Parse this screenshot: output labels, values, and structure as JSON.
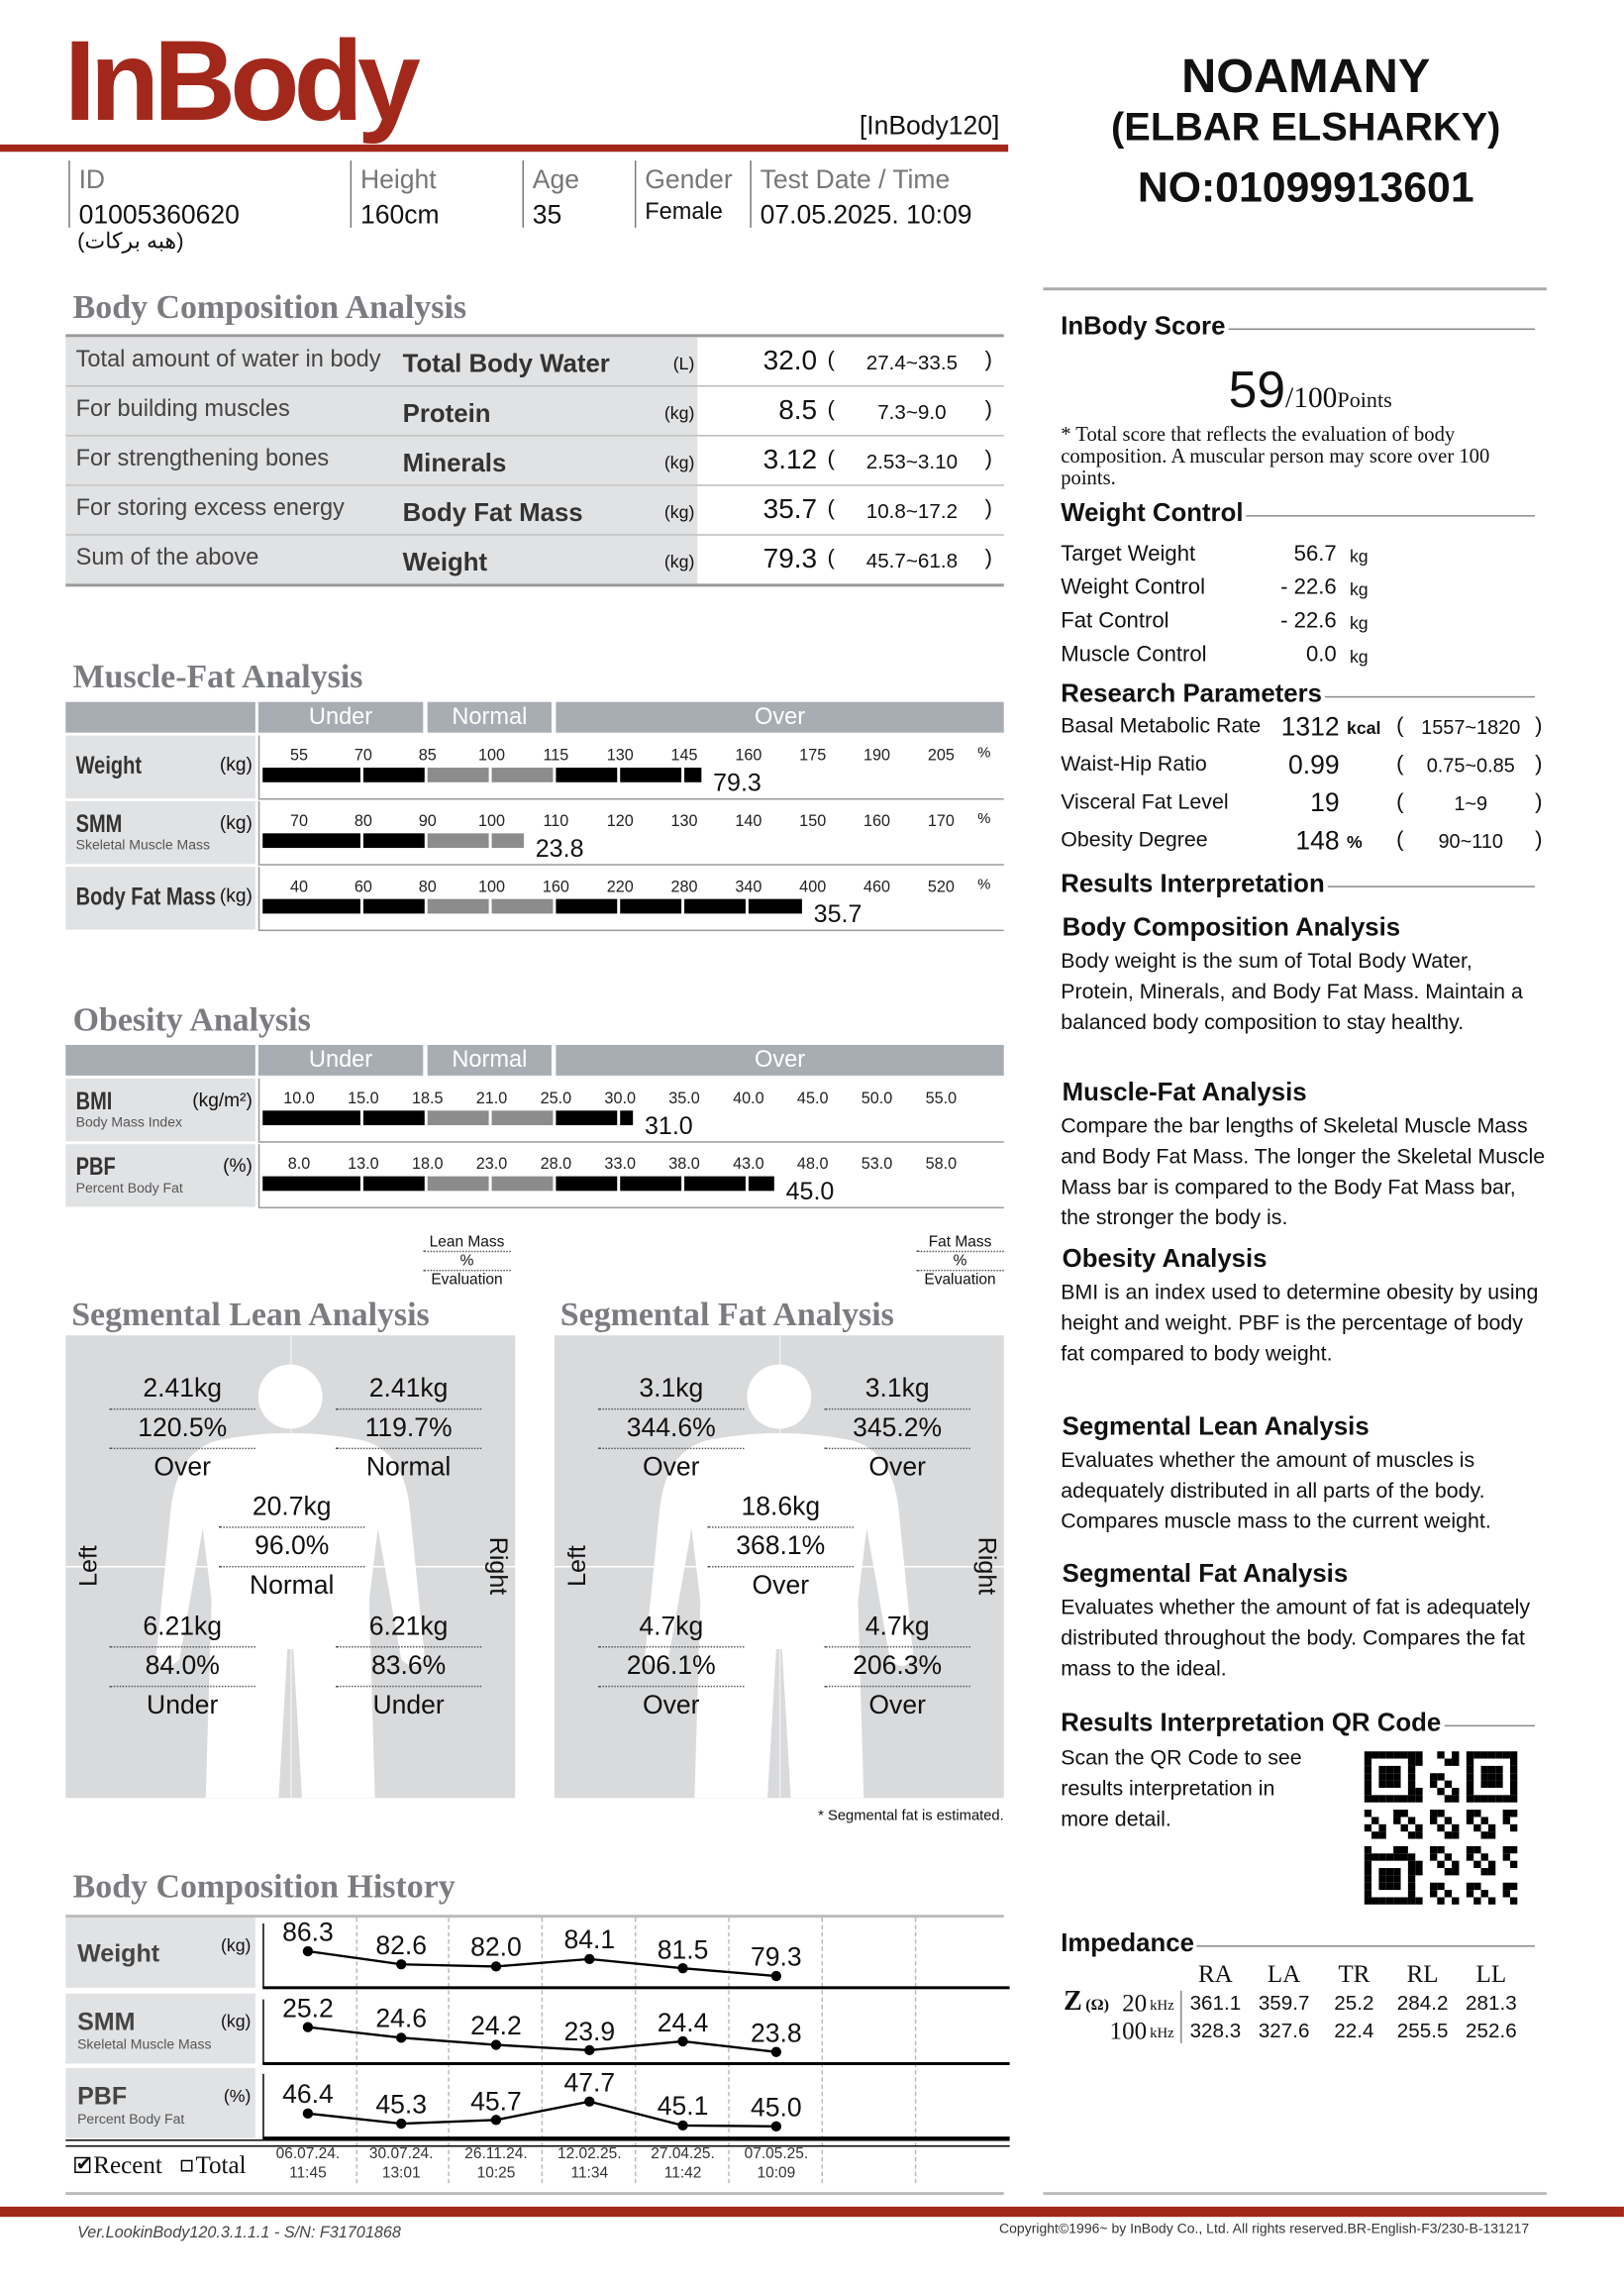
{
  "header": {
    "logo": "InBody",
    "model": "[InBody120]",
    "owner_line1": "NOAMANY",
    "owner_line2": "(ELBAR ELSHARKY)",
    "owner_phone": "NO:01099913601",
    "fields": [
      {
        "label": "ID",
        "value": "01005360620"
      },
      {
        "label": "Height",
        "value": "160cm"
      },
      {
        "label": "Age",
        "value": "35"
      },
      {
        "label": "Gender",
        "value": "Female"
      },
      {
        "label": "Test Date / Time",
        "value": "07.05.2025. 10:09"
      }
    ],
    "name": "(هبه بركات)"
  },
  "body_composition": {
    "title": "Body Composition Analysis",
    "rows": [
      {
        "desc": "Total amount of water in body",
        "name": "Total Body Water",
        "unit": "(L)",
        "value": "32.0",
        "range": "27.4~33.5"
      },
      {
        "desc": "For building muscles",
        "name": "Protein",
        "unit": "(kg)",
        "value": "8.5",
        "range": "7.3~9.0"
      },
      {
        "desc": "For strengthening bones",
        "name": "Minerals",
        "unit": "(kg)",
        "value": "3.12",
        "range": "2.53~3.10"
      },
      {
        "desc": "For storing excess energy",
        "name": "Body Fat Mass",
        "unit": "(kg)",
        "value": "35.7",
        "range": "10.8~17.2"
      },
      {
        "desc": "Sum of the above",
        "name": "Weight",
        "unit": "(kg)",
        "value": "79.3",
        "range": "45.7~61.8"
      }
    ]
  },
  "muscle_fat": {
    "title": "Muscle-Fat Analysis",
    "zones": [
      "Under",
      "Normal",
      "Over"
    ],
    "rows": [
      {
        "name": "Weight",
        "sub": "",
        "unit": "(kg)",
        "ticks": [
          "55",
          "70",
          "85",
          "100",
          "115",
          "130",
          "145",
          "160",
          "175",
          "190",
          "205"
        ],
        "tick_unit": "%",
        "percent_of_standard": 149,
        "value": "79.3"
      },
      {
        "name": "SMM",
        "sub": "Skeletal Muscle Mass",
        "unit": "(kg)",
        "ticks": [
          "70",
          "80",
          "90",
          "100",
          "110",
          "120",
          "130",
          "140",
          "150",
          "160",
          "170"
        ],
        "tick_unit": "%",
        "percent_of_standard": 105,
        "value": "23.8"
      },
      {
        "name": "Body Fat Mass",
        "sub": "",
        "unit": "(kg)",
        "ticks": [
          "40",
          "60",
          "80",
          "100",
          "160",
          "220",
          "280",
          "340",
          "400",
          "460",
          "520"
        ],
        "tick_unit": "%",
        "percent_of_standard": 390,
        "value": "35.7"
      }
    ]
  },
  "obesity": {
    "title": "Obesity Analysis",
    "zones": [
      "Under",
      "Normal",
      "Over"
    ],
    "rows": [
      {
        "name": "BMI",
        "sub": "Body Mass Index",
        "unit": "(kg/m²)",
        "ticks": [
          "10.0",
          "15.0",
          "18.5",
          "21.0",
          "25.0",
          "30.0",
          "35.0",
          "40.0",
          "45.0",
          "50.0",
          "55.0"
        ],
        "level": 31.0,
        "value": "31.0"
      },
      {
        "name": "PBF",
        "sub": "Percent Body Fat",
        "unit": "(%)",
        "ticks": [
          "8.0",
          "13.0",
          "18.0",
          "23.0",
          "28.0",
          "33.0",
          "38.0",
          "43.0",
          "48.0",
          "53.0",
          "58.0"
        ],
        "level": 45.0,
        "value": "45.0"
      }
    ]
  },
  "segmental_lean": {
    "title": "Segmental Lean Analysis",
    "legend": [
      "Lean Mass",
      "%",
      "Evaluation"
    ],
    "left": "Left",
    "right": "Right",
    "parts": {
      "left_arm": [
        "2.41kg",
        "120.5%",
        "Over"
      ],
      "right_arm": [
        "2.41kg",
        "119.7%",
        "Normal"
      ],
      "trunk": [
        "20.7kg",
        "96.0%",
        "Normal"
      ],
      "left_leg": [
        "6.21kg",
        "84.0%",
        "Under"
      ],
      "right_leg": [
        "6.21kg",
        "83.6%",
        "Under"
      ]
    }
  },
  "segmental_fat": {
    "title": "Segmental Fat Analysis",
    "legend": [
      "Fat Mass",
      "%",
      "Evaluation"
    ],
    "left": "Left",
    "right": "Right",
    "note": "* Segmental fat is estimated.",
    "parts": {
      "left_arm": [
        "3.1kg",
        "344.6%",
        "Over"
      ],
      "right_arm": [
        "3.1kg",
        "345.2%",
        "Over"
      ],
      "trunk": [
        "18.6kg",
        "368.1%",
        "Over"
      ],
      "left_leg": [
        "4.7kg",
        "206.1%",
        "Over"
      ],
      "right_leg": [
        "4.7kg",
        "206.3%",
        "Over"
      ]
    }
  },
  "history": {
    "title": "Body Composition History",
    "recent_label": "Recent",
    "total_label": "Total",
    "recent_checked": true,
    "dates": [
      [
        "06.07.24.",
        "11:45"
      ],
      [
        "30.07.24.",
        "13:01"
      ],
      [
        "26.11.24.",
        "10:25"
      ],
      [
        "12.02.25.",
        "11:34"
      ],
      [
        "27.04.25.",
        "11:42"
      ],
      [
        "07.05.25.",
        "10:09"
      ]
    ],
    "rows": [
      {
        "name": "Weight",
        "sub": "",
        "unit": "(kg)",
        "values": [
          86.3,
          82.6,
          82.0,
          84.1,
          81.5,
          79.3
        ],
        "labels": [
          "86.3",
          "82.6",
          "82.0",
          "84.1",
          "81.5",
          "79.3"
        ]
      },
      {
        "name": "SMM",
        "sub": "Skeletal Muscle Mass",
        "unit": "(kg)",
        "values": [
          25.2,
          24.6,
          24.2,
          23.9,
          24.4,
          23.8
        ],
        "labels": [
          "25.2",
          "24.6",
          "24.2",
          "23.9",
          "24.4",
          "23.8"
        ]
      },
      {
        "name": "PBF",
        "sub": "Percent Body Fat",
        "unit": "(%)",
        "values": [
          46.4,
          45.3,
          45.7,
          47.7,
          45.1,
          45.0
        ],
        "labels": [
          "46.4",
          "45.3",
          "45.7",
          "47.7",
          "45.1",
          "45.0"
        ]
      }
    ]
  },
  "score": {
    "title": "InBody Score",
    "value": "59",
    "max": "/100",
    "unit": "Points",
    "note": "* Total score that reflects the evaluation of body composition. A muscular person may score over 100 points."
  },
  "weight_control": {
    "title": "Weight Control",
    "rows": [
      {
        "label": "Target Weight",
        "value": "56.7",
        "unit": "kg"
      },
      {
        "label": "Weight Control",
        "value": "- 22.6",
        "unit": "kg"
      },
      {
        "label": "Fat Control",
        "value": "- 22.6",
        "unit": "kg"
      },
      {
        "label": "Muscle Control",
        "value": "0.0",
        "unit": "kg"
      }
    ]
  },
  "research": {
    "title": "Research Parameters",
    "rows": [
      {
        "label": "Basal Metabolic Rate",
        "value": "1312",
        "unit": "kcal",
        "range": "1557~1820"
      },
      {
        "label": "Waist-Hip Ratio",
        "value": "0.99",
        "unit": "",
        "range": "0.75~0.85"
      },
      {
        "label": "Visceral Fat Level",
        "value": "19",
        "unit": "",
        "range": "1~9"
      },
      {
        "label": "Obesity Degree",
        "value": "148",
        "unit": "%",
        "range": "90~110"
      }
    ]
  },
  "interpretation": {
    "title": "Results Interpretation",
    "sections": [
      {
        "heading": "Body Composition Analysis",
        "text": "Body weight is the sum of Total Body Water, Protein, Minerals, and Body Fat Mass. Maintain a balanced body composition to stay healthy."
      },
      {
        "heading": "Muscle-Fat Analysis",
        "text": "Compare the bar lengths of Skeletal Muscle Mass and Body Fat Mass. The longer the Skeletal Muscle Mass bar is compared to the Body Fat Mass bar, the stronger the body is."
      },
      {
        "heading": "Obesity Analysis",
        "text": "BMI is an index used to determine obesity by using height and weight. PBF is the percentage of body fat compared to body weight."
      },
      {
        "heading": "Segmental Lean Analysis",
        "text": "Evaluates whether the amount of muscles is adequately distributed in all parts of the body. Compares muscle mass to the current weight."
      },
      {
        "heading": "Segmental Fat Analysis",
        "text": "Evaluates whether the amount of fat is adequately distributed throughout the body. Compares the fat mass to the ideal."
      }
    ]
  },
  "qr": {
    "title": "Results Interpretation QR Code",
    "text": "Scan the QR Code to see results interpretation in more detail."
  },
  "impedance": {
    "title": "Impedance",
    "columns": [
      "RA",
      "LA",
      "TR",
      "RL",
      "LL"
    ],
    "z_label": "Z",
    "ohm": "(Ω)",
    "rows": [
      {
        "freq": "20",
        "unit": "kHz",
        "values": [
          "361.1",
          "359.7",
          "25.2",
          "284.2",
          "281.3"
        ]
      },
      {
        "freq": "100",
        "unit": "kHz",
        "values": [
          "328.3",
          "327.6",
          "22.4",
          "255.5",
          "252.6"
        ]
      }
    ]
  },
  "footer": {
    "version": "Ver.LookinBody120.3.1.1.1 - S/N: F31701868",
    "copyright": "Copyright©1996~ by InBody Co., Ltd. All rights reserved.BR-English-F3/230-B-131217"
  },
  "colors": {
    "brand": "#a3281c",
    "panel": "#e1e2e4",
    "zone_header": "#a8adb3",
    "bar": "#000000",
    "bar_normal": "#8c8c8c"
  }
}
